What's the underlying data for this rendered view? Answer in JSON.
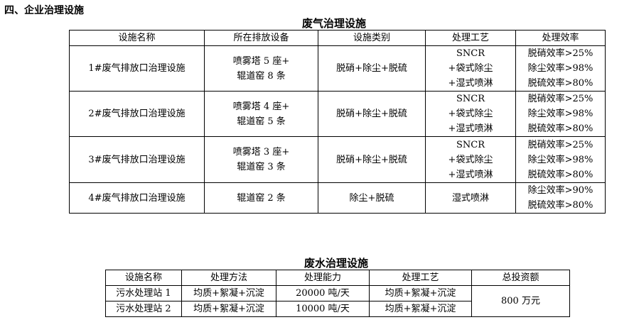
{
  "section_title": "四、企业治理设施",
  "gas_table": {
    "title": "废气治理设施",
    "headers": [
      "设施名称",
      "所在排放设备",
      "设施类别",
      "处理工艺",
      "处理效率"
    ],
    "rows": [
      {
        "name": "1#废气排放口治理设施",
        "equipment": [
          "喷雾塔 5 座+",
          "辊道窑 8 条"
        ],
        "category": "脱硝+除尘+脱硫",
        "process": [
          "SNCR",
          "+袋式除尘",
          "+湿式喷淋"
        ],
        "efficiency": [
          "脱硝效率>25%",
          "除尘效率>98%",
          "脱硫效率>80%"
        ]
      },
      {
        "name": "2#废气排放口治理设施",
        "equipment": [
          "喷雾塔 4 座+",
          "辊道窑 5 条"
        ],
        "category": "脱硝+除尘+脱硫",
        "process": [
          "SNCR",
          "+袋式除尘",
          "+湿式喷淋"
        ],
        "efficiency": [
          "脱硝效率>25%",
          "除尘效率>98%",
          "脱硫效率>80%"
        ]
      },
      {
        "name": "3#废气排放口治理设施",
        "equipment": [
          "喷雾塔 3 座+",
          "辊道窑 3 条"
        ],
        "category": "脱硝+除尘+脱硫",
        "process": [
          "SNCR",
          "+袋式除尘",
          "+湿式喷淋"
        ],
        "efficiency": [
          "脱硝效率>25%",
          "除尘效率>98%",
          "脱硫效率>80%"
        ]
      },
      {
        "name": "4#废气排放口治理设施",
        "equipment": [
          "辊道窑 2 条"
        ],
        "category": "除尘+脱硫",
        "process": [
          "湿式喷淋"
        ],
        "efficiency": [
          "除尘效率>90%",
          "脱硫效率>80%"
        ]
      }
    ]
  },
  "water_table": {
    "title": "废水治理设施",
    "headers": [
      "设施名称",
      "处理方法",
      "处理能力",
      "处理工艺",
      "总投资额"
    ],
    "rows": [
      {
        "name": "污水处理站 1",
        "method": "均质+絮凝+沉淀",
        "capacity": "20000 吨/天",
        "process": "均质+絮凝+沉淀"
      },
      {
        "name": "污水处理站 2",
        "method": "均质+絮凝+沉淀",
        "capacity": "10000 吨/天",
        "process": "均质+絮凝+沉淀"
      }
    ],
    "investment": "800 万元"
  }
}
